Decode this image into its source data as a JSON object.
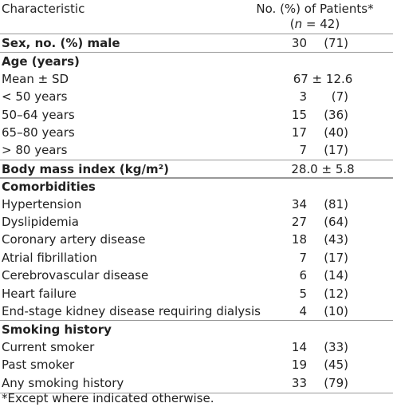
{
  "header": {
    "characteristic": "Characteristic",
    "col_line1": "No. (%) of Patients*",
    "col_line2": [
      "(",
      "n",
      " = 42)"
    ]
  },
  "rows": [
    {
      "label": "Sex, no. (%) male",
      "bold": true,
      "count": "30",
      "pct": "(71)"
    },
    {
      "label": "Age (years)",
      "bold": true
    },
    {
      "label": "Mean ± SD",
      "value": "67 ± 12.6"
    },
    {
      "label": "< 50 years",
      "count": "3",
      "pct": "(7)"
    },
    {
      "label": "50–64 years",
      "count": "15",
      "pct": "(36)"
    },
    {
      "label": "65–80 years",
      "count": "17",
      "pct": "(40)"
    },
    {
      "label": "> 80 years",
      "count": "7",
      "pct": "(17)"
    },
    {
      "label": "Body mass index (kg/m²)",
      "bold": true,
      "value": "28.0 ± 5.8"
    },
    {
      "label": "Comorbidities",
      "bold": true
    },
    {
      "label": "Hypertension",
      "count": "34",
      "pct": "(81)"
    },
    {
      "label": "Dyslipidemia",
      "count": "27",
      "pct": "(64)"
    },
    {
      "label": "Coronary artery disease",
      "count": "18",
      "pct": "(43)"
    },
    {
      "label": "Atrial fibrillation",
      "count": "7",
      "pct": "(17)"
    },
    {
      "label": "Cerebrovascular disease",
      "count": "6",
      "pct": "(14)"
    },
    {
      "label": "Heart failure",
      "count": "5",
      "pct": "(12)"
    },
    {
      "label": "End-stage kidney disease requiring dialysis",
      "count": "4",
      "pct": "(10)"
    },
    {
      "label": "Smoking history",
      "bold": true
    },
    {
      "label": "Current smoker",
      "count": "14",
      "pct": "(33)"
    },
    {
      "label": "Past smoker",
      "count": "19",
      "pct": "(45)"
    },
    {
      "label": "Any smoking history",
      "count": "33",
      "pct": "(79)"
    }
  ],
  "footnote": "*Except where indicated otherwise."
}
